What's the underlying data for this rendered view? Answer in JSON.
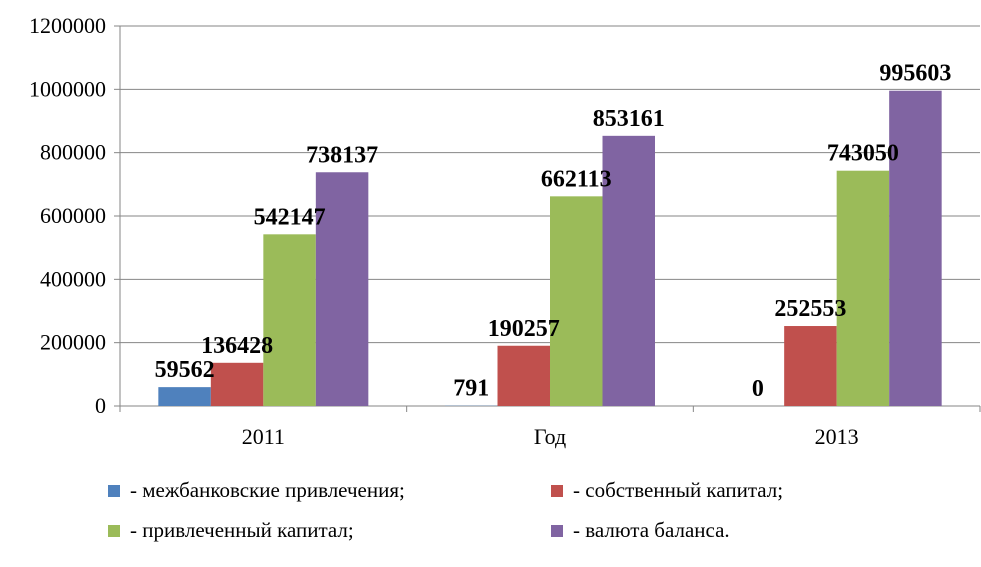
{
  "chart_data": {
    "type": "bar",
    "categories": [
      "2011",
      "Год",
      "2013"
    ],
    "series": [
      {
        "name": "- межбанковские привлечения;",
        "color": "#4F81BD",
        "values": [
          59562,
          791,
          0
        ]
      },
      {
        "name": "- собственный капитал;",
        "color": "#C0504D",
        "values": [
          136428,
          190257,
          252553
        ]
      },
      {
        "name": "- привлеченный капитал;",
        "color": "#9BBB59",
        "values": [
          542147,
          662113,
          743050
        ]
      },
      {
        "name": "- валюта баланса.",
        "color": "#8064A2",
        "values": [
          738137,
          853161,
          995603
        ]
      }
    ],
    "ylim": [
      0,
      1200000
    ],
    "yticks": [
      "0",
      "200000",
      "400000",
      "600000",
      "800000",
      "1000000",
      "1200000"
    ],
    "grid": true,
    "legend_position": "bottom"
  }
}
